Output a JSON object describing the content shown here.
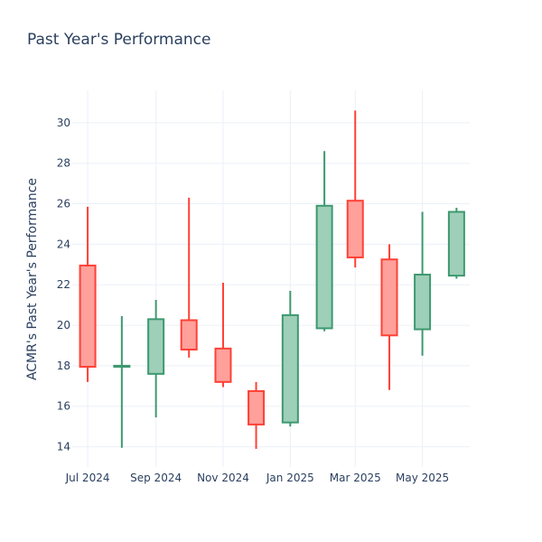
{
  "chart_data": {
    "type": "candlestick",
    "title": "Past Year's Performance",
    "xlabel": "",
    "ylabel": "ACMR's Past Year's Performance",
    "ylim": [
      13.0,
      31.6
    ],
    "yticks": [
      14,
      16,
      18,
      20,
      22,
      24,
      26,
      28,
      30
    ],
    "xlim": [
      "2024-06-17",
      "2025-06-13"
    ],
    "xticks": [
      {
        "date": "2024-07-01",
        "label": "Jul 2024"
      },
      {
        "date": "2024-09-01",
        "label": "Sep 2024"
      },
      {
        "date": "2024-11-01",
        "label": "Nov 2024"
      },
      {
        "date": "2025-01-01",
        "label": "Jan 2025"
      },
      {
        "date": "2025-03-01",
        "label": "Mar 2025"
      },
      {
        "date": "2025-05-01",
        "label": "May 2025"
      }
    ],
    "grid": true,
    "increasing_color": "#3d9970",
    "increasing_fill": "#9ecfb8",
    "decreasing_color": "#ff4136",
    "decreasing_fill": "#ffa09b",
    "candles": [
      {
        "date": "2024-07-01",
        "open": 22.95,
        "high": 25.85,
        "low": 17.2,
        "close": 17.95
      },
      {
        "date": "2024-08-01",
        "open": 17.95,
        "high": 20.45,
        "low": 13.95,
        "close": 18.0
      },
      {
        "date": "2024-09-01",
        "open": 17.6,
        "high": 21.25,
        "low": 15.45,
        "close": 20.3
      },
      {
        "date": "2024-10-01",
        "open": 20.25,
        "high": 26.3,
        "low": 18.4,
        "close": 18.8
      },
      {
        "date": "2024-11-01",
        "open": 18.85,
        "high": 22.1,
        "low": 16.95,
        "close": 17.2
      },
      {
        "date": "2024-12-01",
        "open": 16.75,
        "high": 17.2,
        "low": 13.9,
        "close": 15.1
      },
      {
        "date": "2025-01-01",
        "open": 15.2,
        "high": 21.7,
        "low": 15.0,
        "close": 20.5
      },
      {
        "date": "2025-02-01",
        "open": 19.85,
        "high": 28.6,
        "low": 19.7,
        "close": 25.9
      },
      {
        "date": "2025-03-01",
        "open": 26.15,
        "high": 30.6,
        "low": 22.85,
        "close": 23.35
      },
      {
        "date": "2025-04-01",
        "open": 23.25,
        "high": 24.0,
        "low": 16.8,
        "close": 19.5
      },
      {
        "date": "2025-05-01",
        "open": 19.8,
        "high": 25.6,
        "low": 18.5,
        "close": 22.5
      },
      {
        "date": "2025-06-01",
        "open": 22.45,
        "high": 25.8,
        "low": 22.3,
        "close": 25.6
      }
    ]
  }
}
